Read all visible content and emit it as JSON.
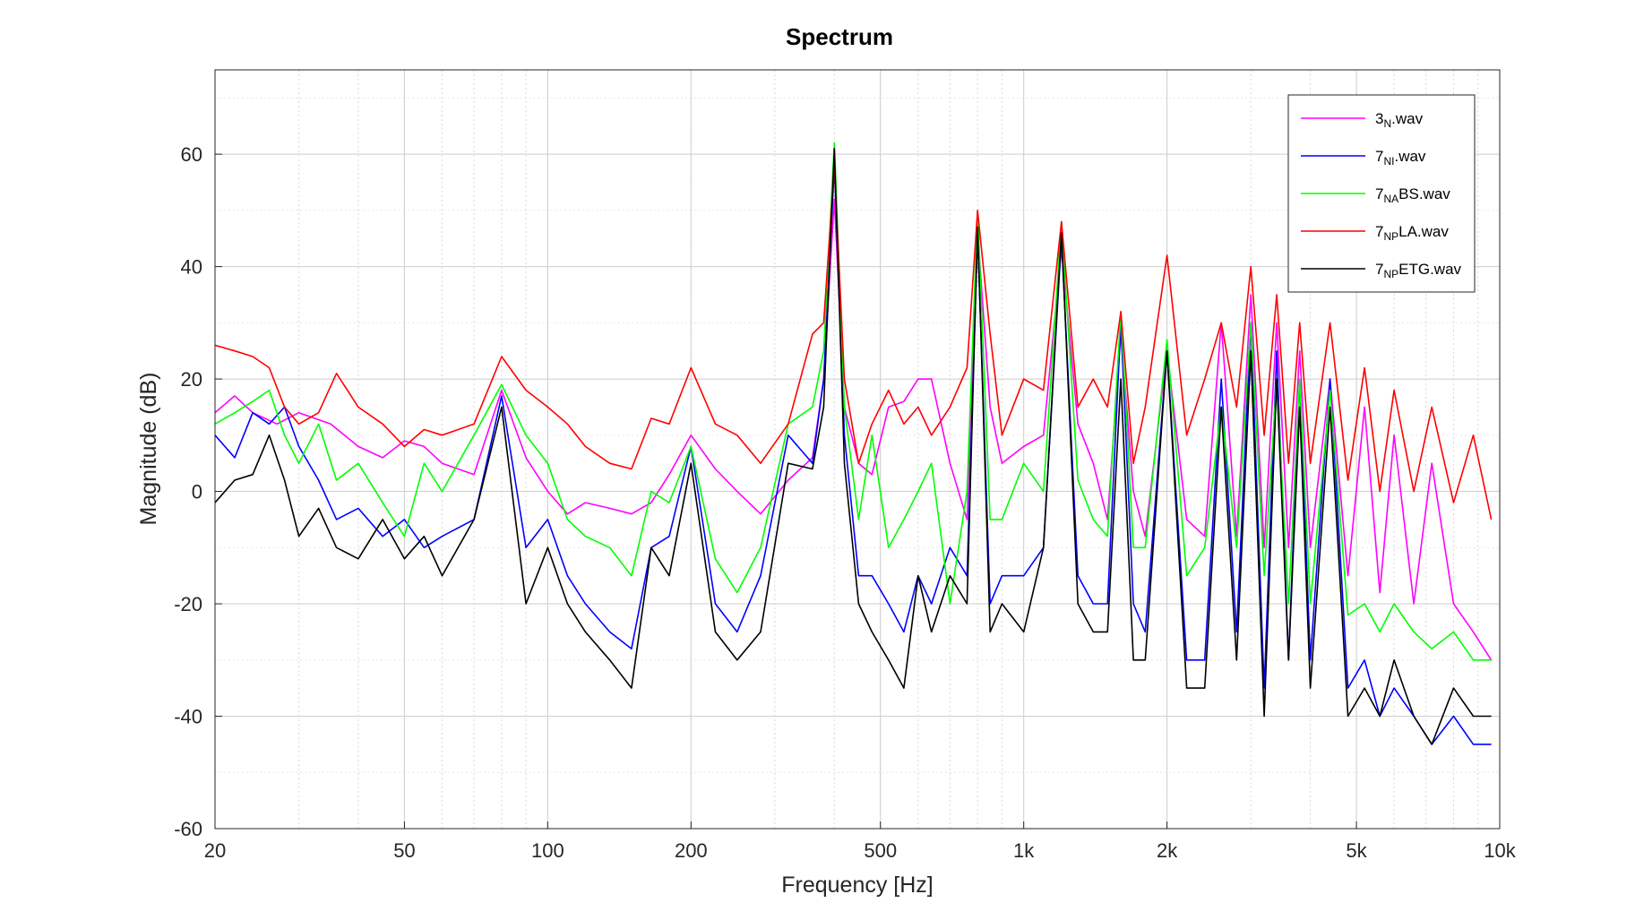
{
  "chart_data": {
    "type": "line",
    "title": "Spectrum",
    "xlabel": "Frequency [Hz]",
    "ylabel": "Magnitude (dB)",
    "xscale": "log",
    "xlim": [
      20,
      10000
    ],
    "ylim": [
      -60,
      75
    ],
    "xticks": [
      20,
      50,
      100,
      200,
      500,
      1000,
      2000,
      5000,
      10000
    ],
    "xtick_labels": [
      "20",
      "50",
      "100",
      "200",
      "500",
      "1k",
      "2k",
      "5k",
      "10k"
    ],
    "yticks": [
      -60,
      -40,
      -20,
      0,
      20,
      40,
      60
    ],
    "ytick_labels": [
      "-60",
      "-40",
      "-20",
      "0",
      "20",
      "40",
      "60"
    ],
    "grid": true,
    "legend_position": "top-right",
    "series": [
      {
        "name_main": "3",
        "name_sub": "N",
        "name_rest": ".wav",
        "color": "#ff00ff",
        "x": [
          20,
          22,
          24,
          27,
          30,
          35,
          40,
          45,
          50,
          55,
          60,
          70,
          80,
          90,
          100,
          110,
          120,
          135,
          150,
          165,
          180,
          200,
          225,
          250,
          280,
          320,
          360,
          380,
          400,
          420,
          450,
          480,
          520,
          560,
          600,
          640,
          700,
          760,
          800,
          850,
          900,
          1000,
          1100,
          1200,
          1300,
          1400,
          1500,
          1600,
          1700,
          1800,
          2000,
          2200,
          2400,
          2600,
          2800,
          3000,
          3200,
          3400,
          3600,
          3800,
          4000,
          4400,
          4800,
          5200,
          5600,
          6000,
          6600,
          7200,
          8000,
          8800,
          9600
        ],
        "y": [
          14,
          17,
          14,
          12,
          14,
          12,
          8,
          6,
          9,
          8,
          5,
          3,
          18,
          6,
          0,
          -4,
          -2,
          -3,
          -4,
          -2,
          3,
          10,
          4,
          0,
          -4,
          2,
          6,
          20,
          52,
          15,
          5,
          3,
          15,
          16,
          20,
          20,
          5,
          -5,
          46,
          15,
          5,
          8,
          10,
          43,
          12,
          5,
          -5,
          28,
          0,
          -8,
          25,
          -5,
          -8,
          30,
          -8,
          35,
          -10,
          30,
          -10,
          25,
          -10,
          20,
          -15,
          15,
          -18,
          10,
          -20,
          5,
          -20,
          -25,
          -30
        ]
      },
      {
        "name_main": "7",
        "name_sub": "NI",
        "name_rest": ".wav",
        "color": "#0000ff",
        "x": [
          20,
          22,
          24,
          26,
          28,
          30,
          33,
          36,
          40,
          45,
          50,
          55,
          60,
          70,
          80,
          90,
          100,
          110,
          120,
          135,
          150,
          165,
          180,
          200,
          225,
          250,
          280,
          320,
          360,
          380,
          400,
          420,
          450,
          480,
          520,
          560,
          600,
          640,
          700,
          760,
          800,
          850,
          900,
          1000,
          1100,
          1200,
          1300,
          1400,
          1500,
          1600,
          1700,
          1800,
          2000,
          2200,
          2400,
          2600,
          2800,
          3000,
          3200,
          3400,
          3600,
          3800,
          4000,
          4400,
          4800,
          5200,
          5600,
          6000,
          6600,
          7200,
          8000,
          8800,
          9600
        ],
        "y": [
          10,
          6,
          14,
          12,
          15,
          8,
          2,
          -5,
          -3,
          -8,
          -5,
          -10,
          -8,
          -5,
          17,
          -10,
          -5,
          -15,
          -20,
          -25,
          -28,
          -10,
          -8,
          8,
          -20,
          -25,
          -15,
          10,
          5,
          20,
          58,
          10,
          -15,
          -15,
          -20,
          -25,
          -15,
          -20,
          -10,
          -15,
          46,
          -20,
          -15,
          -15,
          -10,
          45,
          -15,
          -20,
          -20,
          30,
          -20,
          -25,
          25,
          -30,
          -30,
          20,
          -25,
          30,
          -35,
          25,
          -30,
          20,
          -30,
          20,
          -35,
          -30,
          -40,
          -35,
          -40,
          -45,
          -40,
          -45,
          -45
        ]
      },
      {
        "name_main": "7",
        "name_sub": "NA",
        "name_rest": "BS.wav",
        "color": "#00ff00",
        "x": [
          20,
          22,
          24,
          26,
          28,
          30,
          33,
          36,
          40,
          45,
          50,
          55,
          60,
          70,
          80,
          90,
          100,
          110,
          120,
          135,
          150,
          165,
          180,
          200,
          225,
          250,
          280,
          320,
          360,
          380,
          400,
          420,
          450,
          480,
          520,
          560,
          600,
          640,
          700,
          760,
          800,
          850,
          900,
          1000,
          1100,
          1200,
          1300,
          1400,
          1500,
          1600,
          1700,
          1800,
          2000,
          2200,
          2400,
          2600,
          2800,
          3000,
          3200,
          3400,
          3600,
          3800,
          4000,
          4400,
          4800,
          5200,
          5600,
          6000,
          6600,
          7200,
          8000,
          8800,
          9600
        ],
        "y": [
          12,
          14,
          16,
          18,
          10,
          5,
          12,
          2,
          5,
          -2,
          -8,
          5,
          0,
          10,
          19,
          10,
          5,
          -5,
          -8,
          -10,
          -15,
          0,
          -2,
          8,
          -12,
          -18,
          -10,
          12,
          15,
          25,
          62,
          15,
          -5,
          10,
          -10,
          -5,
          0,
          5,
          -20,
          0,
          50,
          -5,
          -5,
          5,
          0,
          48,
          2,
          -5,
          -8,
          32,
          -10,
          -10,
          27,
          -15,
          -10,
          15,
          -10,
          30,
          -15,
          20,
          -20,
          20,
          -20,
          18,
          -22,
          -20,
          -25,
          -20,
          -25,
          -28,
          -25,
          -30,
          -30
        ]
      },
      {
        "name_main": "7",
        "name_sub": "NP",
        "name_rest": "LA.wav",
        "color": "#ff0000",
        "x": [
          20,
          22,
          24,
          26,
          28,
          30,
          33,
          36,
          40,
          45,
          50,
          55,
          60,
          70,
          80,
          90,
          100,
          110,
          120,
          135,
          150,
          165,
          180,
          200,
          225,
          250,
          280,
          320,
          360,
          380,
          400,
          420,
          450,
          480,
          520,
          560,
          600,
          640,
          700,
          760,
          800,
          850,
          900,
          1000,
          1100,
          1200,
          1300,
          1400,
          1500,
          1600,
          1700,
          1800,
          2000,
          2200,
          2400,
          2600,
          2800,
          3000,
          3200,
          3400,
          3600,
          3800,
          4000,
          4400,
          4800,
          5200,
          5600,
          6000,
          6600,
          7200,
          8000,
          8800,
          9600
        ],
        "y": [
          26,
          25,
          24,
          22,
          15,
          12,
          14,
          21,
          15,
          12,
          8,
          11,
          10,
          12,
          24,
          18,
          15,
          12,
          8,
          5,
          4,
          13,
          12,
          22,
          12,
          10,
          5,
          12,
          28,
          30,
          58,
          20,
          5,
          12,
          18,
          12,
          15,
          10,
          15,
          22,
          50,
          28,
          10,
          20,
          18,
          48,
          15,
          20,
          15,
          32,
          5,
          15,
          42,
          10,
          20,
          30,
          15,
          40,
          10,
          35,
          5,
          30,
          5,
          30,
          2,
          22,
          0,
          18,
          0,
          15,
          -2,
          10,
          -5
        ]
      },
      {
        "name_main": "7",
        "name_sub": "NP",
        "name_rest": "ETG.wav",
        "color": "#000000",
        "x": [
          20,
          22,
          24,
          26,
          28,
          30,
          33,
          36,
          40,
          45,
          50,
          55,
          60,
          70,
          80,
          90,
          100,
          110,
          120,
          135,
          150,
          165,
          180,
          200,
          225,
          250,
          280,
          320,
          360,
          380,
          400,
          420,
          450,
          480,
          520,
          560,
          600,
          640,
          700,
          760,
          800,
          850,
          900,
          1000,
          1100,
          1200,
          1300,
          1400,
          1500,
          1600,
          1700,
          1800,
          2000,
          2200,
          2400,
          2600,
          2800,
          3000,
          3200,
          3400,
          3600,
          3800,
          4000,
          4400,
          4800,
          5200,
          5600,
          6000,
          6600,
          7200,
          8000,
          8800,
          9600
        ],
        "y": [
          -2,
          2,
          3,
          10,
          2,
          -8,
          -3,
          -10,
          -12,
          -5,
          -12,
          -8,
          -15,
          -5,
          15,
          -20,
          -10,
          -20,
          -25,
          -30,
          -35,
          -10,
          -15,
          5,
          -25,
          -30,
          -25,
          5,
          4,
          15,
          61,
          5,
          -20,
          -25,
          -30,
          -35,
          -15,
          -25,
          -15,
          -20,
          47,
          -25,
          -20,
          -25,
          -10,
          46,
          -20,
          -25,
          -25,
          20,
          -30,
          -30,
          25,
          -35,
          -35,
          15,
          -30,
          25,
          -40,
          20,
          -30,
          15,
          -35,
          15,
          -40,
          -35,
          -40,
          -30,
          -40,
          -45,
          -35,
          -40,
          -40
        ]
      }
    ]
  }
}
